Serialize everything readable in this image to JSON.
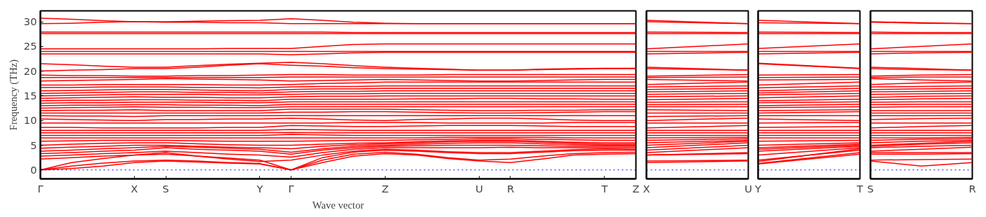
{
  "chart_data": [
    {
      "type": "line",
      "xlabel": "Wave vector",
      "ylabel": "Frequency (THz)",
      "color": "#ff0000",
      "line_style": "solid",
      "categories": [
        "Γ",
        null,
        null,
        "X",
        "S",
        null,
        null,
        "Y",
        "Γ",
        null,
        null,
        "Z",
        null,
        null,
        "U",
        "R",
        null,
        null,
        "T",
        "Z"
      ],
      "ylim": [
        -1.8,
        32.2
      ],
      "yticks": [
        0,
        5,
        10,
        15,
        20,
        25,
        30
      ],
      "ref_lines": [
        {
          "axis": "y",
          "value": 0,
          "color": "#0000ff",
          "line_style": "dotted"
        }
      ],
      "series": [
        {
          "values": [
            0,
            0.3,
            0.8,
            1.5,
            1.8,
            1.6,
            1.4,
            1.2,
            0,
            1.5,
            2.8,
            3.3,
            3.0,
            2.3,
            1.8,
            1.5,
            2.2,
            3.0,
            3.2,
            3.3
          ]
        },
        {
          "values": [
            0,
            0.8,
            1.4,
            1.8,
            2.0,
            1.8,
            1.5,
            1.3,
            0,
            2.0,
            3.2,
            3.6,
            3.2,
            2.5,
            2.0,
            2.2,
            2.8,
            3.3,
            3.5,
            3.6
          ]
        },
        {
          "values": [
            0,
            1.5,
            2.3,
            3.0,
            3.2,
            2.8,
            2.4,
            2.0,
            0,
            2.5,
            3.6,
            4.0,
            3.8,
            3.5,
            3.3,
            3.3,
            3.6,
            3.9,
            4.0,
            4.0
          ]
        },
        {
          "values": [
            2.2,
            2.5,
            2.8,
            3.0,
            3.5,
            2.8,
            2.2,
            1.7,
            2.0,
            3.0,
            3.8,
            4.2,
            4.0,
            3.7,
            3.5,
            3.5,
            3.8,
            4.1,
            4.3,
            4.2
          ]
        },
        {
          "values": [
            2.8,
            3.0,
            3.3,
            3.5,
            3.8,
            3.5,
            3.2,
            3.0,
            2.6,
            3.5,
            4.2,
            4.5,
            4.5,
            4.5,
            4.5,
            4.6,
            4.5,
            4.5,
            4.5,
            4.5
          ]
        },
        {
          "values": [
            3.3,
            3.5,
            3.8,
            4.0,
            4.5,
            4.2,
            4.0,
            3.8,
            3.2,
            4.0,
            4.5,
            4.8,
            4.9,
            5.0,
            5.0,
            5.0,
            4.9,
            4.8,
            4.8,
            4.8
          ]
        },
        {
          "values": [
            3.8,
            4.0,
            4.3,
            4.5,
            4.8,
            4.6,
            4.4,
            4.2,
            3.6,
            4.3,
            4.8,
            5.0,
            5.2,
            5.4,
            5.5,
            5.5,
            5.3,
            5.1,
            5.0,
            5.0
          ]
        },
        {
          "values": [
            4.4,
            4.6,
            4.8,
            5.0,
            5.0,
            4.8,
            4.6,
            4.5,
            4.3,
            4.8,
            5.1,
            5.3,
            5.5,
            5.7,
            5.8,
            5.8,
            5.6,
            5.4,
            5.2,
            5.2
          ]
        },
        {
          "values": [
            5.0,
            5.2,
            5.4,
            5.5,
            5.5,
            5.3,
            5.1,
            5.0,
            5.0,
            5.2,
            5.4,
            5.5,
            5.7,
            5.9,
            6.0,
            6.0,
            5.8,
            5.6,
            5.5,
            5.5
          ]
        },
        {
          "values": [
            5.8,
            5.9,
            6.0,
            6.0,
            6.0,
            5.9,
            5.8,
            5.8,
            5.8,
            5.9,
            6.0,
            6.0,
            6.1,
            6.2,
            6.3,
            6.3,
            6.2,
            6.1,
            6.0,
            6.0
          ]
        },
        {
          "values": [
            6.5,
            6.5,
            6.5,
            6.5,
            6.5,
            6.5,
            6.5,
            6.5,
            6.5,
            6.5,
            6.5,
            6.5,
            6.5,
            6.6,
            6.6,
            6.6,
            6.6,
            6.5,
            6.5,
            6.5
          ]
        },
        {
          "values": [
            7.0,
            7.0,
            7.0,
            7.0,
            7.0,
            7.0,
            7.0,
            7.0,
            7.2,
            7.1,
            7.0,
            7.0,
            7.0,
            7.0,
            7.0,
            7.0,
            7.0,
            7.0,
            7.0,
            7.0
          ]
        },
        {
          "values": [
            7.5,
            7.5,
            7.5,
            7.5,
            7.5,
            7.5,
            7.5,
            7.5,
            7.6,
            7.5,
            7.5,
            7.5,
            7.5,
            7.5,
            7.5,
            7.5,
            7.5,
            7.5,
            7.5,
            7.5
          ]
        },
        {
          "values": [
            8.0,
            8.0,
            8.0,
            8.0,
            8.0,
            8.0,
            8.0,
            8.0,
            8.2,
            8.1,
            8.0,
            8.0,
            8.0,
            8.0,
            8.0,
            8.0,
            8.0,
            8.0,
            8.0,
            8.0
          ]
        },
        {
          "values": [
            8.6,
            8.6,
            8.5,
            8.5,
            8.5,
            8.5,
            8.6,
            8.6,
            9.0,
            8.9,
            8.8,
            8.8,
            8.9,
            9.0,
            9.0,
            9.0,
            8.9,
            8.8,
            8.8,
            8.8
          ]
        },
        {
          "values": [
            9.5,
            9.5,
            9.5,
            9.5,
            9.5,
            9.5,
            9.5,
            9.5,
            9.5,
            9.5,
            9.6,
            9.6,
            9.6,
            9.5,
            9.5,
            9.5,
            9.5,
            9.6,
            9.6,
            9.6
          ]
        },
        {
          "values": [
            10.3,
            10.2,
            10.1,
            10.0,
            10.2,
            10.2,
            10.3,
            10.3,
            10.5,
            10.3,
            10.1,
            10.0,
            10.2,
            10.3,
            10.5,
            10.5,
            10.3,
            10.1,
            10.0,
            10.0
          ]
        },
        {
          "values": [
            11.0,
            10.9,
            10.9,
            10.8,
            11.0,
            11.0,
            11.0,
            11.0,
            11.0,
            11.0,
            11.0,
            11.0,
            11.0,
            11.0,
            11.0,
            11.0,
            11.0,
            11.0,
            11.0,
            11.0
          ]
        },
        {
          "values": [
            11.5,
            11.5,
            11.5,
            11.5,
            11.5,
            11.5,
            11.5,
            11.5,
            11.7,
            11.7,
            11.8,
            11.8,
            11.7,
            11.6,
            11.5,
            11.5,
            11.6,
            11.7,
            11.8,
            11.8
          ]
        },
        {
          "values": [
            12.0,
            12.1,
            12.1,
            12.2,
            12.0,
            12.0,
            12.0,
            12.0,
            12.3,
            12.3,
            12.3,
            12.3,
            12.2,
            12.1,
            12.0,
            12.0,
            12.1,
            12.1,
            12.2,
            12.2
          ]
        },
        {
          "values": [
            12.5,
            12.6,
            12.7,
            12.8,
            12.7,
            12.7,
            12.6,
            12.6,
            12.8,
            12.8,
            12.8,
            12.8,
            12.8,
            12.8,
            12.8,
            12.8,
            12.8,
            12.8,
            12.8,
            12.8
          ]
        },
        {
          "values": [
            13.0,
            13.1,
            13.1,
            13.2,
            13.2,
            13.1,
            13.1,
            13.0,
            13.3,
            13.3,
            13.3,
            13.3,
            13.3,
            13.3,
            13.3,
            13.3,
            13.3,
            13.3,
            13.3,
            13.3
          ]
        },
        {
          "values": [
            13.5,
            13.6,
            13.6,
            13.7,
            13.7,
            13.7,
            13.6,
            13.6,
            13.8,
            13.8,
            13.8,
            13.8,
            13.8,
            13.8,
            13.8,
            13.8,
            13.8,
            13.8,
            13.8,
            13.8
          ]
        },
        {
          "values": [
            14.0,
            14.1,
            14.1,
            14.2,
            14.2,
            14.1,
            14.1,
            14.0,
            14.3,
            14.3,
            14.3,
            14.3,
            14.4,
            14.4,
            14.5,
            14.5,
            14.4,
            14.4,
            14.3,
            14.3
          ]
        },
        {
          "values": [
            14.5,
            14.6,
            14.7,
            14.8,
            14.7,
            14.7,
            14.6,
            14.6,
            14.8,
            14.9,
            14.9,
            15.0,
            15.0,
            15.0,
            15.0,
            15.0,
            15.0,
            15.0,
            15.0,
            15.0
          ]
        },
        {
          "values": [
            15.0,
            15.1,
            15.2,
            15.3,
            15.3,
            15.3,
            15.2,
            15.2,
            15.3,
            15.4,
            15.4,
            15.5,
            15.5,
            15.5,
            15.5,
            15.5,
            15.5,
            15.5,
            15.5,
            15.5
          ]
        },
        {
          "values": [
            15.5,
            15.6,
            15.7,
            15.8,
            15.8,
            15.7,
            15.7,
            15.6,
            15.8,
            15.9,
            15.9,
            16.0,
            16.0,
            16.0,
            16.0,
            16.0,
            16.0,
            16.0,
            16.0,
            16.0
          ]
        },
        {
          "values": [
            16.0,
            16.1,
            16.2,
            16.3,
            16.3,
            16.2,
            16.1,
            16.0,
            16.3,
            16.4,
            16.4,
            16.5,
            16.5,
            16.5,
            16.5,
            16.5,
            16.5,
            16.5,
            16.5,
            16.5
          ]
        },
        {
          "values": [
            16.7,
            16.7,
            16.8,
            16.8,
            16.8,
            16.7,
            16.7,
            16.6,
            16.8,
            16.9,
            16.9,
            17.0,
            17.0,
            17.0,
            17.0,
            17.0,
            17.0,
            17.0,
            17.0,
            17.0
          ]
        },
        {
          "values": [
            17.2,
            17.2,
            17.3,
            17.3,
            17.3,
            17.3,
            17.2,
            17.2,
            17.3,
            17.5,
            17.6,
            17.8,
            17.8,
            17.8,
            17.8,
            17.8,
            17.8,
            17.8,
            17.8,
            17.8
          ]
        },
        {
          "values": [
            18.0,
            18.1,
            18.2,
            18.3,
            18.5,
            18.4,
            18.3,
            18.2,
            18.0,
            18.1,
            18.2,
            18.3,
            18.2,
            18.1,
            18.0,
            18.0,
            18.1,
            18.2,
            18.3,
            18.3
          ]
        },
        {
          "values": [
            18.7,
            18.7,
            18.7,
            18.7,
            18.7,
            18.7,
            18.7,
            18.7,
            18.8,
            18.8,
            18.8,
            18.8,
            18.8,
            18.8,
            18.8,
            18.8,
            18.8,
            18.8,
            18.8,
            18.8
          ]
        },
        {
          "values": [
            19.2,
            19.1,
            19.1,
            19.0,
            19.0,
            19.1,
            19.1,
            19.2,
            19.3,
            19.3,
            19.2,
            19.2,
            19.2,
            19.3,
            19.3,
            19.3,
            19.3,
            19.3,
            19.3,
            19.3
          ]
        },
        {
          "values": [
            20.0,
            20.2,
            20.3,
            20.5,
            20.5,
            20.8,
            21.2,
            21.5,
            21.2,
            21.0,
            20.7,
            20.5,
            20.4,
            20.3,
            20.2,
            20.2,
            20.3,
            20.4,
            20.5,
            20.5
          ]
        },
        {
          "values": [
            21.5,
            21.3,
            21.0,
            20.8,
            20.8,
            21.1,
            21.4,
            21.6,
            21.8,
            21.5,
            21.1,
            20.8,
            20.6,
            20.4,
            20.2,
            20.2,
            20.4,
            20.5,
            20.6,
            20.6
          ]
        },
        {
          "values": [
            23.5,
            23.5,
            23.5,
            23.5,
            23.5,
            23.5,
            23.5,
            23.5,
            23.3,
            23.5,
            23.7,
            23.8,
            23.8,
            23.8,
            23.8,
            23.8,
            23.8,
            23.8,
            23.8,
            23.8
          ]
        },
        {
          "values": [
            24.0,
            24.0,
            24.0,
            24.0,
            24.0,
            24.0,
            24.0,
            24.0,
            24.0,
            24.0,
            24.0,
            24.0,
            24.0,
            24.0,
            24.0,
            24.0,
            24.0,
            24.0,
            24.0,
            24.0
          ]
        },
        {
          "values": [
            24.5,
            24.5,
            24.5,
            24.5,
            24.5,
            24.5,
            24.6,
            24.6,
            24.6,
            25.0,
            25.4,
            25.5,
            25.5,
            25.5,
            25.5,
            25.5,
            25.5,
            25.5,
            25.5,
            25.5
          ]
        },
        {
          "values": [
            27.6,
            27.6,
            27.6,
            27.6,
            27.6,
            27.6,
            27.6,
            27.6,
            27.6,
            27.6,
            27.6,
            27.6,
            27.6,
            27.6,
            27.6,
            27.6,
            27.6,
            27.6,
            27.6,
            27.6
          ]
        },
        {
          "values": [
            27.9,
            27.9,
            27.9,
            27.9,
            27.9,
            27.9,
            27.9,
            27.9,
            27.9,
            27.9,
            27.8,
            27.8,
            27.8,
            27.8,
            27.8,
            27.8,
            27.8,
            27.8,
            27.8,
            27.8
          ]
        },
        {
          "values": [
            29.6,
            29.7,
            29.9,
            30.0,
            29.9,
            29.9,
            29.8,
            29.8,
            29.6,
            29.6,
            29.6,
            29.6,
            29.6,
            29.6,
            29.6,
            29.6,
            29.6,
            29.6,
            29.6,
            29.6
          ]
        },
        {
          "values": [
            30.7,
            30.5,
            30.2,
            30.0,
            30.0,
            30.1,
            30.2,
            30.3,
            30.6,
            30.3,
            29.9,
            29.7,
            29.6,
            29.6,
            29.6,
            29.6,
            29.6,
            29.6,
            29.6,
            29.6
          ]
        }
      ]
    },
    {
      "type": "line",
      "color": "#ff0000",
      "line_style": "solid",
      "tick_labels": "x",
      "categories": [
        "X",
        "U"
      ],
      "ylim": [
        -1.8,
        32.2
      ],
      "ref_lines": [
        {
          "axis": "y",
          "value": 0,
          "color": "#0000ff",
          "line_style": "dotted"
        }
      ],
      "series": [
        {
          "values": [
            1.5,
            1.8
          ]
        },
        {
          "values": [
            1.8,
            2.0
          ]
        },
        {
          "values": [
            3.0,
            3.3
          ]
        },
        {
          "values": [
            3.0,
            3.5
          ]
        },
        {
          "values": [
            3.5,
            4.5
          ]
        },
        {
          "values": [
            4.0,
            5.0
          ]
        },
        {
          "values": [
            4.5,
            5.5
          ]
        },
        {
          "values": [
            5.0,
            5.8
          ]
        },
        {
          "values": [
            5.5,
            6.0
          ]
        },
        {
          "values": [
            6.0,
            6.3
          ]
        },
        {
          "values": [
            6.5,
            6.6
          ]
        },
        {
          "values": [
            7.0,
            7.0
          ]
        },
        {
          "values": [
            7.5,
            7.5
          ]
        },
        {
          "values": [
            8.0,
            8.0
          ]
        },
        {
          "values": [
            8.5,
            9.0
          ]
        },
        {
          "values": [
            9.5,
            9.5
          ]
        },
        {
          "values": [
            10.0,
            10.5
          ]
        },
        {
          "values": [
            10.8,
            11.0
          ]
        },
        {
          "values": [
            11.5,
            11.5
          ]
        },
        {
          "values": [
            12.2,
            12.0
          ]
        },
        {
          "values": [
            12.8,
            12.8
          ]
        },
        {
          "values": [
            13.2,
            13.3
          ]
        },
        {
          "values": [
            13.7,
            13.8
          ]
        },
        {
          "values": [
            14.2,
            14.5
          ]
        },
        {
          "values": [
            14.8,
            15.0
          ]
        },
        {
          "values": [
            15.3,
            15.5
          ]
        },
        {
          "values": [
            15.8,
            16.0
          ]
        },
        {
          "values": [
            16.3,
            16.5
          ]
        },
        {
          "values": [
            16.8,
            17.0
          ]
        },
        {
          "values": [
            17.3,
            17.8
          ]
        },
        {
          "values": [
            18.3,
            18.0
          ]
        },
        {
          "values": [
            18.7,
            18.8
          ]
        },
        {
          "values": [
            19.0,
            19.3
          ]
        },
        {
          "values": [
            20.5,
            20.2
          ]
        },
        {
          "values": [
            20.8,
            20.2
          ]
        },
        {
          "values": [
            23.5,
            23.8
          ]
        },
        {
          "values": [
            24.0,
            24.0
          ]
        },
        {
          "values": [
            24.5,
            25.5
          ]
        },
        {
          "values": [
            27.6,
            27.6
          ]
        },
        {
          "values": [
            27.9,
            27.8
          ]
        },
        {
          "values": [
            30.0,
            29.6
          ]
        },
        {
          "values": [
            30.3,
            29.6
          ]
        }
      ]
    },
    {
      "type": "line",
      "color": "#ff0000",
      "line_style": "solid",
      "tick_labels": "x",
      "categories": [
        "Y",
        "T"
      ],
      "ylim": [
        -1.8,
        32.2
      ],
      "ref_lines": [
        {
          "axis": "y",
          "value": 0,
          "color": "#0000ff",
          "line_style": "dotted"
        }
      ],
      "series": [
        {
          "values": [
            1.2,
            3.2
          ]
        },
        {
          "values": [
            1.3,
            3.5
          ]
        },
        {
          "values": [
            2.0,
            4.0
          ]
        },
        {
          "values": [
            1.7,
            4.3
          ]
        },
        {
          "values": [
            3.0,
            4.5
          ]
        },
        {
          "values": [
            3.8,
            4.8
          ]
        },
        {
          "values": [
            4.2,
            5.0
          ]
        },
        {
          "values": [
            4.5,
            5.2
          ]
        },
        {
          "values": [
            5.0,
            5.5
          ]
        },
        {
          "values": [
            5.8,
            6.0
          ]
        },
        {
          "values": [
            6.5,
            6.5
          ]
        },
        {
          "values": [
            7.0,
            7.0
          ]
        },
        {
          "values": [
            7.5,
            7.5
          ]
        },
        {
          "values": [
            8.0,
            8.0
          ]
        },
        {
          "values": [
            8.6,
            8.8
          ]
        },
        {
          "values": [
            9.5,
            9.6
          ]
        },
        {
          "values": [
            10.3,
            10.0
          ]
        },
        {
          "values": [
            11.0,
            11.0
          ]
        },
        {
          "values": [
            11.5,
            11.8
          ]
        },
        {
          "values": [
            12.0,
            12.2
          ]
        },
        {
          "values": [
            12.6,
            12.8
          ]
        },
        {
          "values": [
            13.0,
            13.3
          ]
        },
        {
          "values": [
            13.6,
            13.8
          ]
        },
        {
          "values": [
            14.0,
            14.3
          ]
        },
        {
          "values": [
            14.6,
            15.0
          ]
        },
        {
          "values": [
            15.2,
            15.5
          ]
        },
        {
          "values": [
            15.6,
            16.0
          ]
        },
        {
          "values": [
            16.0,
            16.5
          ]
        },
        {
          "values": [
            16.6,
            17.0
          ]
        },
        {
          "values": [
            17.2,
            17.8
          ]
        },
        {
          "values": [
            18.2,
            18.3
          ]
        },
        {
          "values": [
            18.7,
            18.8
          ]
        },
        {
          "values": [
            19.2,
            19.3
          ]
        },
        {
          "values": [
            21.5,
            20.5
          ]
        },
        {
          "values": [
            21.6,
            20.6
          ]
        },
        {
          "values": [
            23.5,
            23.8
          ]
        },
        {
          "values": [
            24.0,
            24.0
          ]
        },
        {
          "values": [
            24.6,
            25.5
          ]
        },
        {
          "values": [
            27.6,
            27.6
          ]
        },
        {
          "values": [
            27.9,
            27.8
          ]
        },
        {
          "values": [
            29.8,
            29.6
          ]
        },
        {
          "values": [
            30.3,
            29.6
          ]
        }
      ]
    },
    {
      "type": "line",
      "color": "#ff0000",
      "line_style": "solid",
      "tick_labels": "x",
      "categories": [
        "S",
        null,
        "R"
      ],
      "ylim": [
        -1.8,
        32.2
      ],
      "ref_lines": [
        {
          "axis": "y",
          "value": 0,
          "color": "#0000ff",
          "line_style": "dotted"
        }
      ],
      "series": [
        {
          "values": [
            1.8,
            0.8,
            1.5
          ]
        },
        {
          "values": [
            2.0,
            2.1,
            2.2
          ]
        },
        {
          "values": [
            3.2,
            3.2,
            3.3
          ]
        },
        {
          "values": [
            3.5,
            3.5,
            3.5
          ]
        },
        {
          "values": [
            3.8,
            4.2,
            4.6
          ]
        },
        {
          "values": [
            4.5,
            4.8,
            5.0
          ]
        },
        {
          "values": [
            4.8,
            5.2,
            5.5
          ]
        },
        {
          "values": [
            5.0,
            5.4,
            5.8
          ]
        },
        {
          "values": [
            5.5,
            5.8,
            6.0
          ]
        },
        {
          "values": [
            6.0,
            6.2,
            6.3
          ]
        },
        {
          "values": [
            6.5,
            6.5,
            6.6
          ]
        },
        {
          "values": [
            7.0,
            7.0,
            7.0
          ]
        },
        {
          "values": [
            7.5,
            7.5,
            7.5
          ]
        },
        {
          "values": [
            8.0,
            8.0,
            8.0
          ]
        },
        {
          "values": [
            8.5,
            8.8,
            9.0
          ]
        },
        {
          "values": [
            9.5,
            9.5,
            9.5
          ]
        },
        {
          "values": [
            10.2,
            10.4,
            10.5
          ]
        },
        {
          "values": [
            11.0,
            11.0,
            11.0
          ]
        },
        {
          "values": [
            11.5,
            11.5,
            11.5
          ]
        },
        {
          "values": [
            12.0,
            12.0,
            12.0
          ]
        },
        {
          "values": [
            12.7,
            12.8,
            12.8
          ]
        },
        {
          "values": [
            13.2,
            13.3,
            13.3
          ]
        },
        {
          "values": [
            13.7,
            13.8,
            13.8
          ]
        },
        {
          "values": [
            14.2,
            14.4,
            14.5
          ]
        },
        {
          "values": [
            14.7,
            14.9,
            15.0
          ]
        },
        {
          "values": [
            15.3,
            15.4,
            15.5
          ]
        },
        {
          "values": [
            15.8,
            15.9,
            16.0
          ]
        },
        {
          "values": [
            16.3,
            16.4,
            16.5
          ]
        },
        {
          "values": [
            16.8,
            16.9,
            17.0
          ]
        },
        {
          "values": [
            17.3,
            17.6,
            17.8
          ]
        },
        {
          "values": [
            18.5,
            18.2,
            18.0
          ]
        },
        {
          "values": [
            18.7,
            18.8,
            18.8
          ]
        },
        {
          "values": [
            19.0,
            19.2,
            19.3
          ]
        },
        {
          "values": [
            20.5,
            20.3,
            20.2
          ]
        },
        {
          "values": [
            20.8,
            20.5,
            20.2
          ]
        },
        {
          "values": [
            23.5,
            23.7,
            23.8
          ]
        },
        {
          "values": [
            24.0,
            24.0,
            24.0
          ]
        },
        {
          "values": [
            24.5,
            25.0,
            25.5
          ]
        },
        {
          "values": [
            27.6,
            27.6,
            27.6
          ]
        },
        {
          "values": [
            27.9,
            27.8,
            27.8
          ]
        },
        {
          "values": [
            29.9,
            29.7,
            29.6
          ]
        },
        {
          "values": [
            30.0,
            29.8,
            29.6
          ]
        }
      ]
    }
  ]
}
